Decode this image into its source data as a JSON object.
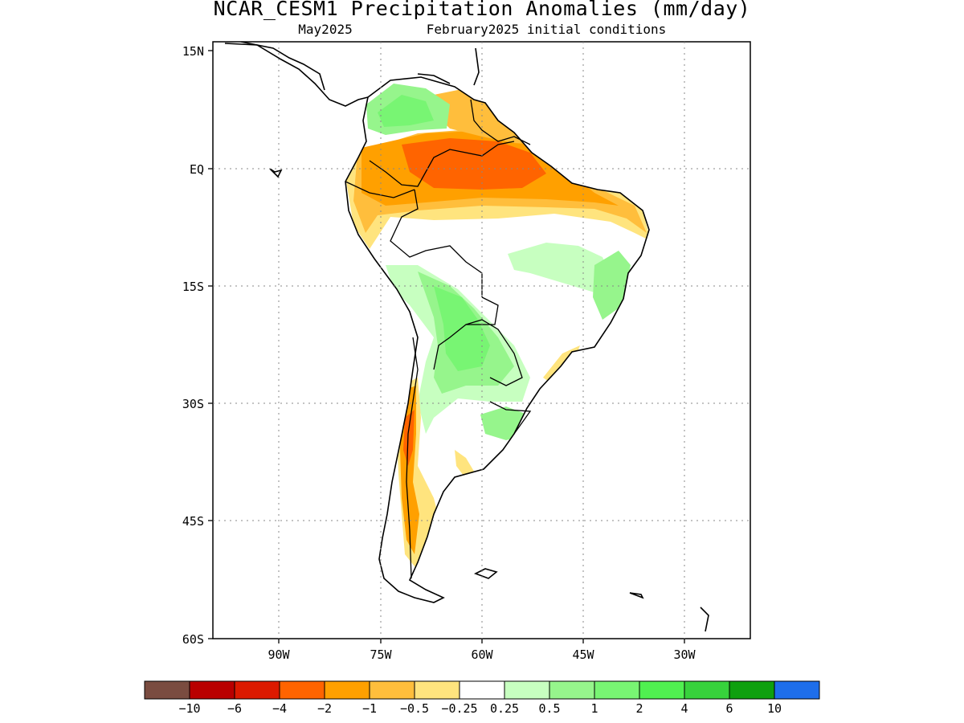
{
  "header": {
    "title": "NCAR_CESM1 Precipitation Anomalies (mm/day)",
    "valid_month": "May2025",
    "init": "February2025 initial conditions"
  },
  "axes": {
    "lat_labels": [
      "15N",
      "EQ",
      "15S",
      "30S",
      "45S",
      "60S"
    ],
    "lon_labels": [
      "90W",
      "75W",
      "60W",
      "45W",
      "30W"
    ],
    "lat_range": [
      15,
      -60
    ],
    "lon_range": [
      -100,
      -20
    ]
  },
  "legend": {
    "labels": [
      "-10",
      "-6",
      "-4",
      "-2",
      "-1",
      "-0.5",
      "-0.25",
      "0.25",
      "0.5",
      "1",
      "2",
      "4",
      "6",
      "10"
    ],
    "colors": [
      "#7a4c40",
      "#b90000",
      "#dc1a00",
      "#ff6400",
      "#ffa000",
      "#ffbe3c",
      "#ffe47e",
      "#ffffff",
      "#c7ffc0",
      "#96f58c",
      "#78f573",
      "#50f050",
      "#37d23c",
      "#0fa00f",
      "#1e6eeb"
    ]
  }
}
